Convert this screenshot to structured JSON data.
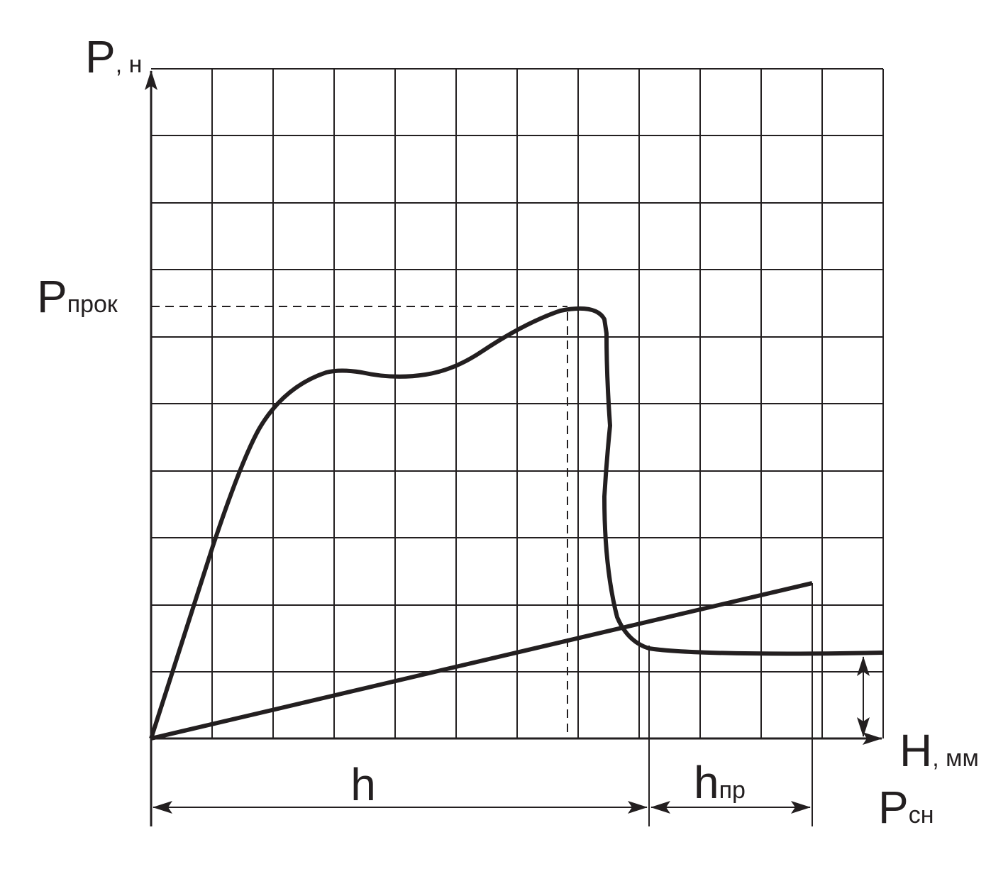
{
  "y_axis": {
    "symbol": "P",
    "unit": ", н"
  },
  "x_axis": {
    "symbol": "H",
    "unit": ", мм"
  },
  "peak_label": {
    "symbol": "P",
    "subscript": "прок"
  },
  "h_label": "h",
  "h_pr_label": {
    "symbol": "h",
    "subscript": "пр"
  },
  "spring_label": {
    "symbol": "P",
    "subscript": "сн"
  }
}
